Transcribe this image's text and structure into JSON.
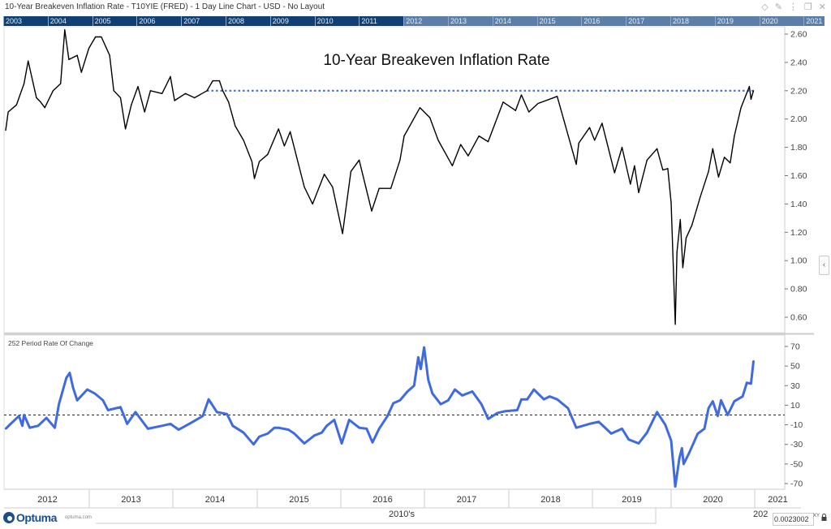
{
  "window": {
    "title": "10-Year Breakeven Inflation Rate - T10YIE (FRED) - 1 Day Line Chart - USD - No Layout",
    "icons": [
      "diamond-icon",
      "pin-icon",
      "more-icon",
      "restore-icon",
      "close-icon"
    ]
  },
  "navigator": {
    "years": [
      "2003",
      "2004",
      "2005",
      "2006",
      "2007",
      "2008",
      "2009",
      "2010",
      "2011",
      "2012",
      "2013",
      "2014",
      "2015",
      "2016",
      "2017",
      "2018",
      "2019",
      "2020",
      "2021"
    ]
  },
  "footer": {
    "logo_text": "Optuma",
    "logo_url": "optuma.com",
    "decade_label": "2010's",
    "decade_label_next": "202",
    "readout": "0.0023002",
    "xy_label": "XY"
  },
  "colors": {
    "price_line": "#000000",
    "roc_line": "#3f6ae0",
    "level_line": "#3f6ae0",
    "nav_dark": "#0f3f73",
    "nav_light": "#5b7fa8"
  },
  "chart_data": [
    {
      "type": "line",
      "title": "10-Year Breakeven Inflation Rate",
      "ylim": [
        0.5,
        2.65
      ],
      "yticks": [
        "2.60",
        "2.40",
        "2.20",
        "2.00",
        "1.80",
        "1.60",
        "1.40",
        "1.20",
        "1.00",
        "0.80",
        "0.60"
      ],
      "xticks": [
        "2012",
        "2013",
        "2014",
        "2015",
        "2016",
        "2017",
        "2018",
        "2019",
        "2020",
        "2021"
      ],
      "xlim": [
        2012.0,
        2021.3
      ],
      "level_line": {
        "value": 2.2,
        "from": 2014.42,
        "to": 2020.99,
        "style": "dotted"
      },
      "points": [
        [
          2012.0,
          1.92
        ],
        [
          2012.03,
          2.05
        ],
        [
          2012.13,
          2.1
        ],
        [
          2012.22,
          2.25
        ],
        [
          2012.27,
          2.41
        ],
        [
          2012.37,
          2.15
        ],
        [
          2012.42,
          2.12
        ],
        [
          2012.47,
          2.08
        ],
        [
          2012.57,
          2.2
        ],
        [
          2012.66,
          2.25
        ],
        [
          2012.71,
          2.63
        ],
        [
          2012.76,
          2.42
        ],
        [
          2012.86,
          2.45
        ],
        [
          2012.91,
          2.33
        ],
        [
          2013.0,
          2.5
        ],
        [
          2013.08,
          2.58
        ],
        [
          2013.15,
          2.58
        ],
        [
          2013.25,
          2.45
        ],
        [
          2013.3,
          2.2
        ],
        [
          2013.38,
          2.15
        ],
        [
          2013.44,
          1.93
        ],
        [
          2013.51,
          2.1
        ],
        [
          2013.59,
          2.23
        ],
        [
          2013.67,
          2.05
        ],
        [
          2013.74,
          2.2
        ],
        [
          2013.88,
          2.18
        ],
        [
          2013.98,
          2.3
        ],
        [
          2014.03,
          2.13
        ],
        [
          2014.16,
          2.18
        ],
        [
          2014.27,
          2.15
        ],
        [
          2014.42,
          2.2
        ],
        [
          2014.49,
          2.27
        ],
        [
          2014.57,
          2.27
        ],
        [
          2014.61,
          2.2
        ],
        [
          2014.68,
          2.12
        ],
        [
          2014.76,
          1.95
        ],
        [
          2014.86,
          1.85
        ],
        [
          2014.96,
          1.7
        ],
        [
          2014.99,
          1.58
        ],
        [
          2015.05,
          1.7
        ],
        [
          2015.15,
          1.75
        ],
        [
          2015.28,
          1.93
        ],
        [
          2015.35,
          1.81
        ],
        [
          2015.42,
          1.91
        ],
        [
          2015.59,
          1.52
        ],
        [
          2015.69,
          1.4
        ],
        [
          2015.83,
          1.61
        ],
        [
          2015.93,
          1.52
        ],
        [
          2016.05,
          1.19
        ],
        [
          2016.15,
          1.63
        ],
        [
          2016.25,
          1.71
        ],
        [
          2016.4,
          1.35
        ],
        [
          2016.49,
          1.51
        ],
        [
          2016.63,
          1.51
        ],
        [
          2016.74,
          1.71
        ],
        [
          2016.79,
          1.88
        ],
        [
          2016.98,
          2.08
        ],
        [
          2017.1,
          2.01
        ],
        [
          2017.2,
          1.85
        ],
        [
          2017.37,
          1.67
        ],
        [
          2017.47,
          1.82
        ],
        [
          2017.56,
          1.74
        ],
        [
          2017.69,
          1.88
        ],
        [
          2017.8,
          1.84
        ],
        [
          2017.98,
          2.12
        ],
        [
          2018.13,
          2.06
        ],
        [
          2018.2,
          2.17
        ],
        [
          2018.29,
          2.05
        ],
        [
          2018.4,
          2.11
        ],
        [
          2018.63,
          2.16
        ],
        [
          2018.86,
          1.68
        ],
        [
          2018.89,
          1.83
        ],
        [
          2019.02,
          1.94
        ],
        [
          2019.08,
          1.85
        ],
        [
          2019.17,
          1.97
        ],
        [
          2019.32,
          1.62
        ],
        [
          2019.41,
          1.8
        ],
        [
          2019.51,
          1.54
        ],
        [
          2019.56,
          1.67
        ],
        [
          2019.61,
          1.48
        ],
        [
          2019.71,
          1.71
        ],
        [
          2019.83,
          1.79
        ],
        [
          2019.9,
          1.64
        ],
        [
          2019.96,
          1.65
        ],
        [
          2020.0,
          1.41
        ],
        [
          2020.05,
          0.55
        ],
        [
          2020.07,
          1.06
        ],
        [
          2020.11,
          1.29
        ],
        [
          2020.14,
          0.95
        ],
        [
          2020.18,
          1.16
        ],
        [
          2020.25,
          1.25
        ],
        [
          2020.35,
          1.45
        ],
        [
          2020.45,
          1.63
        ],
        [
          2020.5,
          1.79
        ],
        [
          2020.57,
          1.59
        ],
        [
          2020.64,
          1.73
        ],
        [
          2020.71,
          1.69
        ],
        [
          2020.76,
          1.88
        ],
        [
          2020.84,
          2.08
        ],
        [
          2020.94,
          2.23
        ],
        [
          2020.96,
          2.14
        ],
        [
          2020.99,
          2.2
        ]
      ]
    },
    {
      "type": "line",
      "title": "252 Period Rate Of Change",
      "ylim": [
        -75,
        75
      ],
      "yticks": [
        "70",
        "50",
        "30",
        "10",
        "-10",
        "-30",
        "-50",
        "-70"
      ],
      "reference_line": {
        "value": 0,
        "style": "dashed"
      },
      "points": [
        [
          2012.0,
          -14
        ],
        [
          2012.06,
          -9
        ],
        [
          2012.16,
          -1
        ],
        [
          2012.2,
          -11
        ],
        [
          2012.22,
          0
        ],
        [
          2012.29,
          -13
        ],
        [
          2012.39,
          -11
        ],
        [
          2012.49,
          -3
        ],
        [
          2012.59,
          -13
        ],
        [
          2012.64,
          11
        ],
        [
          2012.73,
          38
        ],
        [
          2012.77,
          43
        ],
        [
          2012.81,
          28
        ],
        [
          2012.86,
          15
        ],
        [
          2012.98,
          26
        ],
        [
          2013.07,
          22
        ],
        [
          2013.17,
          15
        ],
        [
          2013.23,
          5
        ],
        [
          2013.38,
          8
        ],
        [
          2013.46,
          -9
        ],
        [
          2013.56,
          3
        ],
        [
          2013.71,
          -14
        ],
        [
          2013.88,
          -11
        ],
        [
          2013.98,
          -9
        ],
        [
          2014.08,
          -15
        ],
        [
          2014.25,
          -7
        ],
        [
          2014.37,
          -1
        ],
        [
          2014.44,
          16
        ],
        [
          2014.54,
          3
        ],
        [
          2014.66,
          1
        ],
        [
          2014.73,
          -11
        ],
        [
          2014.86,
          -18
        ],
        [
          2014.98,
          -30
        ],
        [
          2015.05,
          -22
        ],
        [
          2015.15,
          -19
        ],
        [
          2015.23,
          -13
        ],
        [
          2015.28,
          -13
        ],
        [
          2015.4,
          -15
        ],
        [
          2015.47,
          -19
        ],
        [
          2015.59,
          -29
        ],
        [
          2015.71,
          -21
        ],
        [
          2015.8,
          -18
        ],
        [
          2015.86,
          -11
        ],
        [
          2015.95,
          -5
        ],
        [
          2016.04,
          -29
        ],
        [
          2016.13,
          -5
        ],
        [
          2016.25,
          -13
        ],
        [
          2016.34,
          -14
        ],
        [
          2016.41,
          -28
        ],
        [
          2016.49,
          -14
        ],
        [
          2016.59,
          -1
        ],
        [
          2016.66,
          12
        ],
        [
          2016.74,
          15
        ],
        [
          2016.83,
          24
        ],
        [
          2016.91,
          30
        ],
        [
          2016.96,
          59
        ],
        [
          2016.99,
          47
        ],
        [
          2017.03,
          69
        ],
        [
          2017.08,
          36
        ],
        [
          2017.13,
          22
        ],
        [
          2017.23,
          11
        ],
        [
          2017.32,
          15
        ],
        [
          2017.4,
          26
        ],
        [
          2017.49,
          20
        ],
        [
          2017.61,
          24
        ],
        [
          2017.72,
          11
        ],
        [
          2017.8,
          -4
        ],
        [
          2017.91,
          2
        ],
        [
          2018.01,
          4
        ],
        [
          2018.15,
          5
        ],
        [
          2018.2,
          16
        ],
        [
          2018.27,
          16
        ],
        [
          2018.35,
          26
        ],
        [
          2018.47,
          16
        ],
        [
          2018.54,
          19
        ],
        [
          2018.63,
          16
        ],
        [
          2018.76,
          7
        ],
        [
          2018.86,
          -13
        ],
        [
          2019.02,
          -9
        ],
        [
          2019.13,
          -7
        ],
        [
          2019.28,
          -19
        ],
        [
          2019.41,
          -14
        ],
        [
          2019.49,
          -25
        ],
        [
          2019.61,
          -29
        ],
        [
          2019.71,
          -18
        ],
        [
          2019.83,
          3
        ],
        [
          2019.93,
          -10
        ],
        [
          2020.0,
          -26
        ],
        [
          2020.05,
          -73
        ],
        [
          2020.1,
          -44
        ],
        [
          2020.13,
          -34
        ],
        [
          2020.15,
          -50
        ],
        [
          2020.22,
          -38
        ],
        [
          2020.32,
          -19
        ],
        [
          2020.4,
          -14
        ],
        [
          2020.45,
          7
        ],
        [
          2020.5,
          14
        ],
        [
          2020.56,
          -1
        ],
        [
          2020.6,
          15
        ],
        [
          2020.68,
          0
        ],
        [
          2020.76,
          14
        ],
        [
          2020.86,
          19
        ],
        [
          2020.91,
          33
        ],
        [
          2020.96,
          32
        ],
        [
          2020.99,
          55
        ]
      ]
    }
  ]
}
